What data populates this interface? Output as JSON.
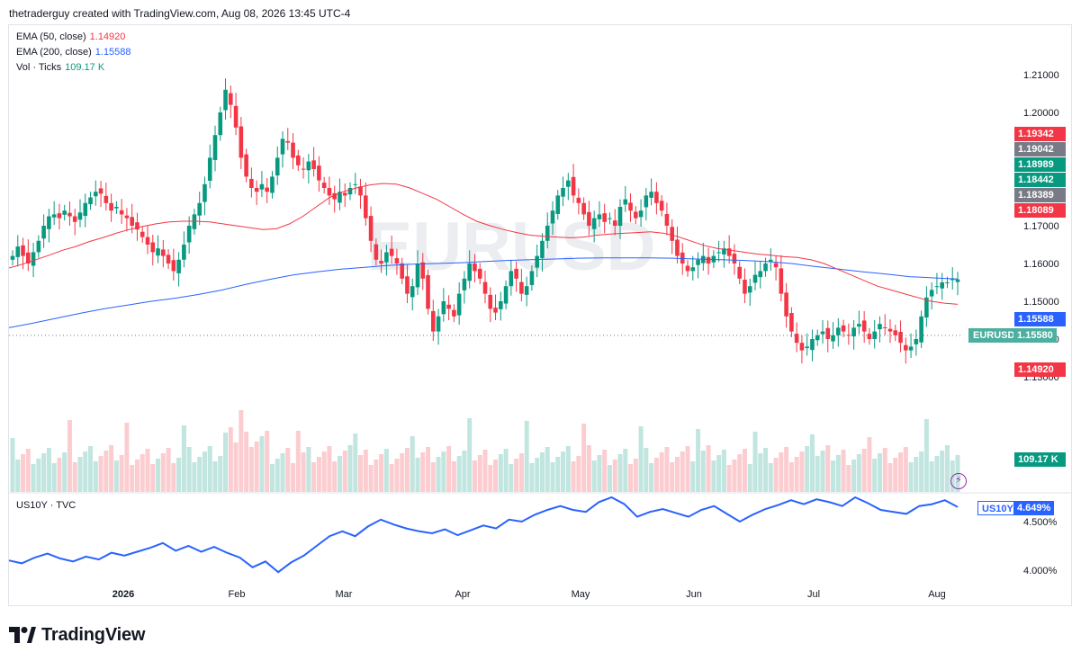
{
  "header": {
    "text": "thetraderguy created with TradingView.com, Aug 08, 2026 13:45 UTC-4"
  },
  "legend": {
    "ema50": {
      "label": "EMA (50, close)",
      "value": "1.14920",
      "color": "#f23645"
    },
    "ema200": {
      "label": "EMA (200, close)",
      "value": "1.15588",
      "color": "#2962ff"
    },
    "vol": {
      "label": "Vol · Ticks",
      "value": "109.17 K",
      "color": "#089981"
    },
    "us10y": {
      "label": "US10Y · TVC"
    }
  },
  "watermark": "EURUSD",
  "brand": "TradingView",
  "price_axis": {
    "ticks": [
      "1.21000",
      "1.20000",
      "1.17000",
      "1.16000",
      "1.15000",
      "1.14000",
      "1.13000"
    ],
    "tags": [
      {
        "text": "1.19342",
        "color": "#f23645"
      },
      {
        "text": "1.19042",
        "color": "#787b86"
      },
      {
        "text": "1.18989",
        "color": "#089981"
      },
      {
        "text": "1.18442",
        "color": "#089981"
      },
      {
        "text": "1.18389",
        "color": "#787b86"
      },
      {
        "text": "1.18089",
        "color": "#f23645"
      },
      {
        "text": "1.15588",
        "color": "#2962ff"
      },
      {
        "text": "1.14920",
        "color": "#f23645"
      },
      {
        "text": "109.17 K",
        "color": "#089981"
      }
    ],
    "current": {
      "symbol": "EURUSD",
      "price": "1.15580"
    }
  },
  "us10y_axis": {
    "ticks": [
      "4.500%",
      "4.000%"
    ],
    "current": {
      "symbol": "US10Y",
      "value": "4.649%"
    }
  },
  "time_axis": [
    "2026",
    "Feb",
    "Mar",
    "Apr",
    "May",
    "Jun",
    "Jul",
    "Aug"
  ],
  "colors": {
    "up": "#089981",
    "down": "#f23645",
    "ema50": "#f23645",
    "ema200": "#2962ff",
    "us10y": "#2962ff"
  },
  "chart_data": [
    {
      "type": "candlestick",
      "symbol": "EURUSD",
      "interval": "daily",
      "ylim": [
        1.13,
        1.214
      ],
      "closes": [
        1.162,
        1.1645,
        1.162,
        1.16,
        1.163,
        1.166,
        1.17,
        1.1725,
        1.173,
        1.172,
        1.174,
        1.1725,
        1.171,
        1.1735,
        1.176,
        1.1775,
        1.179,
        1.1785,
        1.176,
        1.174,
        1.175,
        1.173,
        1.172,
        1.17,
        1.169,
        1.167,
        1.165,
        1.163,
        1.164,
        1.162,
        1.16,
        1.158,
        1.161,
        1.165,
        1.17,
        1.173,
        1.176,
        1.181,
        1.188,
        1.194,
        1.2,
        1.206,
        1.202,
        1.196,
        1.188,
        1.183,
        1.18,
        1.179,
        1.181,
        1.179,
        1.183,
        1.188,
        1.193,
        1.192,
        1.188,
        1.186,
        1.185,
        1.187,
        1.185,
        1.182,
        1.18,
        1.178,
        1.177,
        1.179,
        1.178,
        1.18,
        1.181,
        1.178,
        1.172,
        1.166,
        1.161,
        1.16,
        1.163,
        1.162,
        1.16,
        1.156,
        1.152,
        1.154,
        1.16,
        1.156,
        1.148,
        1.142,
        1.146,
        1.15,
        1.148,
        1.146,
        1.152,
        1.156,
        1.16,
        1.158,
        1.156,
        1.152,
        1.148,
        1.147,
        1.15,
        1.154,
        1.158,
        1.156,
        1.152,
        1.154,
        1.158,
        1.162,
        1.166,
        1.17,
        1.174,
        1.178,
        1.18,
        1.182,
        1.178,
        1.176,
        1.173,
        1.17,
        1.172,
        1.173,
        1.171,
        1.172,
        1.17,
        1.175,
        1.177,
        1.174,
        1.172,
        1.174,
        1.178,
        1.179,
        1.176,
        1.174,
        1.17,
        1.166,
        1.162,
        1.16,
        1.158,
        1.159,
        1.161,
        1.162,
        1.16,
        1.162,
        1.163,
        1.164,
        1.162,
        1.16,
        1.156,
        1.152,
        1.154,
        1.157,
        1.158,
        1.16,
        1.161,
        1.159,
        1.152,
        1.146,
        1.142,
        1.139,
        1.137,
        1.138,
        1.14,
        1.141,
        1.142,
        1.14,
        1.141,
        1.143,
        1.142,
        1.141,
        1.143,
        1.144,
        1.142,
        1.14,
        1.142,
        1.144,
        1.143,
        1.142,
        1.141,
        1.139,
        1.137,
        1.138,
        1.14,
        1.146,
        1.151,
        1.153,
        1.154,
        1.155,
        1.155,
        1.156,
        1.1558
      ]
    },
    {
      "type": "line",
      "name": "EMA (50, close)",
      "values": [
        1.1588,
        1.1598,
        1.161,
        1.1622,
        1.1635,
        1.1645,
        1.1658,
        1.1668,
        1.168,
        1.169,
        1.1698,
        1.1705,
        1.171,
        1.1712,
        1.1712,
        1.171,
        1.1705,
        1.17,
        1.1695,
        1.169,
        1.1692,
        1.1705,
        1.1725,
        1.175,
        1.1775,
        1.179,
        1.18,
        1.1808,
        1.1812,
        1.181,
        1.18,
        1.1785,
        1.177,
        1.175,
        1.173,
        1.1712,
        1.17,
        1.169,
        1.1682,
        1.1675,
        1.1672,
        1.167,
        1.1668,
        1.167,
        1.1675,
        1.1678,
        1.168,
        1.1682,
        1.1684,
        1.168,
        1.1672,
        1.166,
        1.1648,
        1.164,
        1.1635,
        1.163,
        1.1625,
        1.1622,
        1.1618,
        1.1616,
        1.161,
        1.16,
        1.1585,
        1.157,
        1.1555,
        1.154,
        1.153,
        1.152,
        1.151,
        1.15,
        1.1495,
        1.1492
      ]
    },
    {
      "type": "line",
      "name": "EMA (200, close)",
      "values": [
        1.143,
        1.1442,
        1.1455,
        1.1468,
        1.148,
        1.149,
        1.15,
        1.1508,
        1.1518,
        1.153,
        1.1545,
        1.1558,
        1.157,
        1.1578,
        1.1585,
        1.159,
        1.1595,
        1.1598,
        1.16,
        1.1602,
        1.1605,
        1.1608,
        1.161,
        1.1612,
        1.1614,
        1.1615,
        1.1615,
        1.1615,
        1.1614,
        1.1612,
        1.161,
        1.1608,
        1.1605,
        1.16,
        1.1592,
        1.1585,
        1.1578,
        1.1572,
        1.1565,
        1.1562,
        1.1559
      ]
    },
    {
      "type": "bar",
      "name": "Vol · Ticks",
      "last_value": "109.17 K"
    },
    {
      "type": "line",
      "name": "US10Y",
      "ylim": [
        3.9,
        4.8
      ],
      "values": [
        4.1,
        4.07,
        4.13,
        4.17,
        4.12,
        4.09,
        4.14,
        4.11,
        4.18,
        4.15,
        4.19,
        4.23,
        4.28,
        4.2,
        4.25,
        4.19,
        4.24,
        4.18,
        4.13,
        4.03,
        4.09,
        3.98,
        4.08,
        4.15,
        4.25,
        4.35,
        4.4,
        4.35,
        4.45,
        4.52,
        4.47,
        4.43,
        4.4,
        4.38,
        4.42,
        4.36,
        4.41,
        4.46,
        4.43,
        4.52,
        4.5,
        4.57,
        4.62,
        4.66,
        4.62,
        4.6,
        4.7,
        4.75,
        4.68,
        4.55,
        4.6,
        4.63,
        4.59,
        4.55,
        4.62,
        4.66,
        4.58,
        4.5,
        4.57,
        4.63,
        4.67,
        4.72,
        4.68,
        4.73,
        4.7,
        4.66,
        4.75,
        4.69,
        4.62,
        4.6,
        4.58,
        4.66,
        4.68,
        4.72,
        4.65
      ]
    }
  ]
}
